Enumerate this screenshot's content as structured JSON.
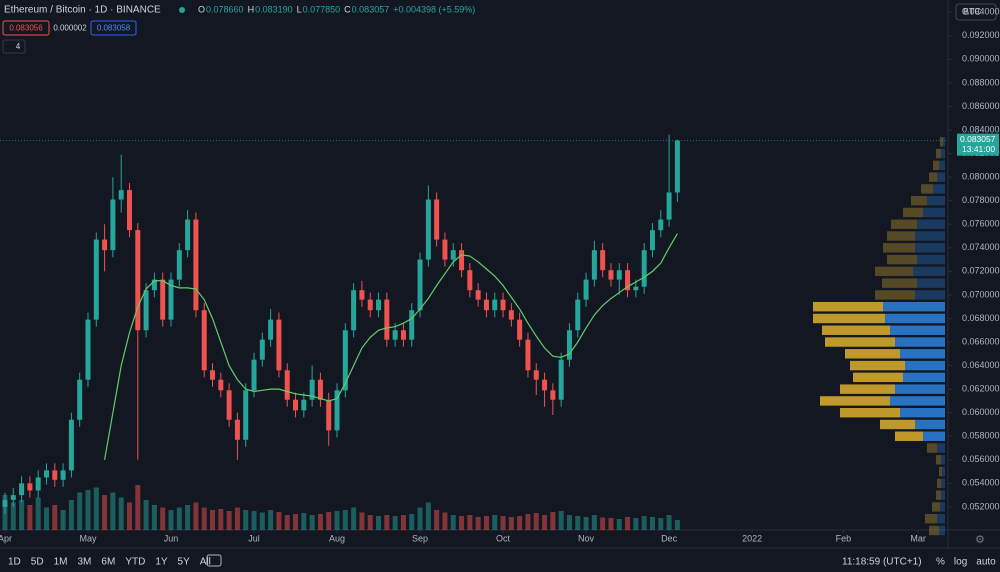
{
  "header": {
    "symbol": "Ethereum / Bitcoin · 1D · BINANCE",
    "ohlc": [
      {
        "key": "O",
        "value": "0.078660"
      },
      {
        "key": "H",
        "value": "0.083190"
      },
      {
        "key": "L",
        "value": "0.077850"
      },
      {
        "key": "C",
        "value": "0.083057"
      }
    ],
    "change": "+0.004398 (+5.59%)",
    "sell": "0.083056",
    "spread": "0.000002",
    "buy": "0.083058",
    "indicators": "4",
    "currency": "BTC"
  },
  "price_label": {
    "price": "0.083057",
    "countdown": "13:41:00"
  },
  "toolbar": {
    "ranges": [
      "1D",
      "5D",
      "1M",
      "3M",
      "6M",
      "YTD",
      "1Y",
      "5Y",
      "All"
    ],
    "time": "11:18:59 (UTC+1)",
    "options": [
      "%",
      "log",
      "auto"
    ]
  },
  "chart_data": {
    "type": "candlestick",
    "up_color": "#26a69a",
    "down_color": "#ef5350",
    "x": [
      0,
      1,
      2,
      3,
      4,
      5,
      6,
      7,
      8,
      9,
      10,
      11,
      12,
      13,
      14,
      15,
      16,
      17,
      18,
      19,
      20,
      21,
      22,
      23,
      24,
      25,
      26,
      27,
      28,
      29,
      30,
      31,
      32,
      33,
      34,
      35,
      36,
      37,
      38,
      39,
      40,
      41,
      42,
      43,
      44,
      45,
      46,
      47,
      48,
      49,
      50,
      51,
      52,
      53,
      54,
      55,
      56,
      57,
      58,
      59,
      60,
      61,
      62,
      63,
      64,
      65,
      66,
      67,
      68,
      69,
      70,
      71,
      72,
      73,
      74,
      75,
      76,
      77,
      78,
      79,
      80,
      81
    ],
    "open": [
      0.052,
      0.0526,
      0.053,
      0.054,
      0.0534,
      0.0545,
      0.0551,
      0.0543,
      0.0551,
      0.0594,
      0.0628,
      0.0679,
      0.0747,
      0.0738,
      0.0781,
      0.0789,
      0.0755,
      0.067,
      0.0704,
      0.0713,
      0.0679,
      0.0713,
      0.0738,
      0.0764,
      0.0687,
      0.0636,
      0.0628,
      0.0619,
      0.0594,
      0.0577,
      0.0619,
      0.0645,
      0.0662,
      0.0679,
      0.0636,
      0.0611,
      0.0602,
      0.0611,
      0.0628,
      0.0611,
      0.0585,
      0.0619,
      0.067,
      0.0704,
      0.0696,
      0.0687,
      0.0696,
      0.0662,
      0.067,
      0.0662,
      0.0687,
      0.073,
      0.0781,
      0.0747,
      0.073,
      0.0738,
      0.0721,
      0.0704,
      0.0696,
      0.0687,
      0.0696,
      0.0687,
      0.0679,
      0.0662,
      0.0636,
      0.0628,
      0.0619,
      0.0611,
      0.0645,
      0.067,
      0.0696,
      0.0713,
      0.0738,
      0.0721,
      0.0713,
      0.0721,
      0.0704,
      0.0707,
      0.0738,
      0.0755,
      0.0764,
      0.0787
    ],
    "high": [
      0.0532,
      0.0536,
      0.0546,
      0.0546,
      0.0551,
      0.0557,
      0.0557,
      0.0557,
      0.06,
      0.0634,
      0.0685,
      0.0753,
      0.076,
      0.08,
      0.0819,
      0.0795,
      0.0761,
      0.071,
      0.0719,
      0.0719,
      0.0719,
      0.0744,
      0.0772,
      0.077,
      0.0693,
      0.0642,
      0.0634,
      0.0625,
      0.06,
      0.0625,
      0.0651,
      0.0668,
      0.0688,
      0.0685,
      0.0642,
      0.0617,
      0.0617,
      0.064,
      0.0634,
      0.0617,
      0.0625,
      0.0676,
      0.071,
      0.0712,
      0.0702,
      0.0702,
      0.0702,
      0.0676,
      0.0676,
      0.0693,
      0.0736,
      0.0793,
      0.0787,
      0.0753,
      0.0744,
      0.0744,
      0.0727,
      0.071,
      0.0702,
      0.0702,
      0.0702,
      0.0693,
      0.0685,
      0.0668,
      0.0642,
      0.0634,
      0.0625,
      0.0651,
      0.0676,
      0.0702,
      0.0719,
      0.0746,
      0.0744,
      0.0727,
      0.0727,
      0.0727,
      0.0713,
      0.0744,
      0.0761,
      0.0772,
      0.0836,
      0.0832
    ],
    "low": [
      0.0514,
      0.052,
      0.0524,
      0.0528,
      0.0528,
      0.0539,
      0.0537,
      0.0537,
      0.0545,
      0.0588,
      0.0622,
      0.0673,
      0.072,
      0.0732,
      0.077,
      0.0749,
      0.056,
      0.0664,
      0.0698,
      0.0673,
      0.0673,
      0.0707,
      0.0732,
      0.0681,
      0.063,
      0.0622,
      0.0613,
      0.0588,
      0.056,
      0.0571,
      0.0613,
      0.0639,
      0.0656,
      0.063,
      0.0605,
      0.0596,
      0.0596,
      0.0605,
      0.0605,
      0.0572,
      0.0579,
      0.0613,
      0.0664,
      0.069,
      0.0681,
      0.0681,
      0.0656,
      0.0656,
      0.0656,
      0.0656,
      0.0681,
      0.0724,
      0.0741,
      0.0724,
      0.0724,
      0.0715,
      0.0698,
      0.069,
      0.0681,
      0.0681,
      0.0681,
      0.0673,
      0.0656,
      0.063,
      0.0615,
      0.0605,
      0.0598,
      0.0605,
      0.0639,
      0.0664,
      0.069,
      0.0707,
      0.0715,
      0.0707,
      0.07,
      0.0698,
      0.0698,
      0.0701,
      0.0732,
      0.0749,
      0.0758,
      0.0779
    ],
    "close": [
      0.0526,
      0.053,
      0.054,
      0.0534,
      0.0545,
      0.0551,
      0.0543,
      0.0551,
      0.0594,
      0.0628,
      0.0679,
      0.0747,
      0.0738,
      0.0781,
      0.0789,
      0.0755,
      0.067,
      0.0704,
      0.0713,
      0.0679,
      0.0713,
      0.0738,
      0.0764,
      0.0687,
      0.0636,
      0.0628,
      0.0619,
      0.0594,
      0.0577,
      0.0619,
      0.0645,
      0.0662,
      0.0679,
      0.0636,
      0.0611,
      0.0602,
      0.0611,
      0.0628,
      0.0611,
      0.0585,
      0.0619,
      0.067,
      0.0704,
      0.0696,
      0.0687,
      0.0696,
      0.0662,
      0.067,
      0.0662,
      0.0687,
      0.073,
      0.0781,
      0.0747,
      0.073,
      0.0738,
      0.0721,
      0.0704,
      0.0696,
      0.0687,
      0.0696,
      0.0687,
      0.0679,
      0.0662,
      0.0636,
      0.0628,
      0.0619,
      0.0611,
      0.0645,
      0.067,
      0.0696,
      0.0713,
      0.0738,
      0.0721,
      0.0713,
      0.0721,
      0.0704,
      0.0707,
      0.0738,
      0.0755,
      0.0764,
      0.0787,
      0.0831
    ],
    "ma": {
      "color": "#5fcf6a",
      "values": [
        null,
        null,
        null,
        null,
        null,
        null,
        null,
        null,
        null,
        null,
        null,
        null,
        0.056,
        0.06,
        0.064,
        0.0668,
        0.069,
        0.0705,
        0.0712,
        0.0712,
        0.0708,
        0.0706,
        0.0706,
        0.0705,
        0.0696,
        0.068,
        0.066,
        0.064,
        0.0628,
        0.062,
        0.0618,
        0.0619,
        0.062,
        0.062,
        0.0618,
        0.0616,
        0.0615,
        0.0614,
        0.0612,
        0.061,
        0.0612,
        0.0625,
        0.064,
        0.0655,
        0.0664,
        0.067,
        0.0672,
        0.0673,
        0.0676,
        0.068,
        0.0688,
        0.0697,
        0.0708,
        0.0718,
        0.0728,
        0.0734,
        0.0733,
        0.0728,
        0.0722,
        0.0716,
        0.0708,
        0.0698,
        0.0688,
        0.0676,
        0.0665,
        0.0655,
        0.0648,
        0.0647,
        0.065,
        0.066,
        0.0672,
        0.0683,
        0.0691,
        0.0697,
        0.0702,
        0.0707,
        0.0711,
        0.0715,
        0.072,
        0.0727,
        0.074,
        0.0752
      ]
    },
    "volume": [
      70,
      55,
      60,
      50,
      65,
      45,
      50,
      40,
      60,
      75,
      80,
      85,
      70,
      75,
      65,
      55,
      90,
      60,
      50,
      45,
      40,
      45,
      50,
      55,
      45,
      40,
      42,
      38,
      45,
      40,
      38,
      35,
      40,
      36,
      30,
      32,
      34,
      30,
      32,
      36,
      38,
      40,
      45,
      35,
      30,
      28,
      30,
      28,
      30,
      32,
      45,
      55,
      40,
      35,
      30,
      28,
      30,
      26,
      28,
      30,
      28,
      26,
      28,
      32,
      34,
      30,
      36,
      38,
      30,
      28,
      26,
      30,
      25,
      24,
      22,
      26,
      24,
      28,
      26,
      24,
      30,
      20
    ],
    "volume_profile": {
      "up_color": "#2b7cd3",
      "down_color": "#d4a72c",
      "value_area": [
        0.0574,
        0.0692
      ],
      "levels": [
        0.05,
        0.051,
        0.052,
        0.053,
        0.054,
        0.055,
        0.056,
        0.057,
        0.058,
        0.059,
        0.06,
        0.061,
        0.062,
        0.063,
        0.064,
        0.065,
        0.066,
        0.067,
        0.068,
        0.069,
        0.07,
        0.071,
        0.072,
        0.073,
        0.074,
        0.075,
        0.076,
        0.077,
        0.078,
        0.079,
        0.08,
        0.081,
        0.082,
        0.083
      ],
      "up": [
        6,
        8,
        5,
        4,
        4,
        3,
        4,
        8,
        22,
        30,
        45,
        55,
        50,
        42,
        40,
        45,
        50,
        55,
        60,
        62,
        30,
        28,
        32,
        28,
        30,
        30,
        28,
        22,
        18,
        12,
        8,
        6,
        4,
        2
      ],
      "down": [
        10,
        12,
        8,
        5,
        4,
        3,
        5,
        10,
        28,
        35,
        60,
        70,
        55,
        50,
        55,
        55,
        70,
        68,
        72,
        70,
        40,
        35,
        38,
        30,
        32,
        28,
        26,
        20,
        16,
        12,
        8,
        6,
        5,
        3
      ]
    },
    "xlim": [
      -0.6,
      113.6
    ],
    "xticks": [
      {
        "value": 0,
        "label": "Apr"
      },
      {
        "value": 10,
        "label": "May"
      },
      {
        "value": 20,
        "label": "Jun"
      },
      {
        "value": 30,
        "label": "Jul"
      },
      {
        "value": 40,
        "label": "Aug"
      },
      {
        "value": 50,
        "label": "Sep"
      },
      {
        "value": 60,
        "label": "Oct"
      },
      {
        "value": 70,
        "label": "Nov"
      },
      {
        "value": 80,
        "label": "Dec"
      },
      {
        "value": 90,
        "label": "2022"
      },
      {
        "value": 101,
        "label": "Feb"
      },
      {
        "value": 110,
        "label": "Mar"
      }
    ],
    "ylim": [
      0.05004,
      0.09504
    ],
    "yticks": [
      {
        "value": 0.052,
        "label": "0.052000"
      },
      {
        "value": 0.054,
        "label": "0.054000"
      },
      {
        "value": 0.056,
        "label": "0.056000"
      },
      {
        "value": 0.058,
        "label": "0.058000"
      },
      {
        "value": 0.06,
        "label": "0.060000"
      },
      {
        "value": 0.062,
        "label": "0.062000"
      },
      {
        "value": 0.064,
        "label": "0.064000"
      },
      {
        "value": 0.066,
        "label": "0.066000"
      },
      {
        "value": 0.068,
        "label": "0.068000"
      },
      {
        "value": 0.07,
        "label": "0.070000"
      },
      {
        "value": 0.072,
        "label": "0.072000"
      },
      {
        "value": 0.074,
        "label": "0.074000"
      },
      {
        "value": 0.076,
        "label": "0.076000"
      },
      {
        "value": 0.078,
        "label": "0.078000"
      },
      {
        "value": 0.08,
        "label": "0.080000"
      },
      {
        "value": 0.082,
        "label": "0.082000"
      },
      {
        "value": 0.084,
        "label": "0.084000"
      },
      {
        "value": 0.086,
        "label": "0.086000"
      },
      {
        "value": 0.088,
        "label": "0.088000"
      },
      {
        "value": 0.09,
        "label": "0.090000"
      },
      {
        "value": 0.092,
        "label": "0.092000"
      },
      {
        "value": 0.094,
        "label": "0.094000"
      }
    ]
  }
}
